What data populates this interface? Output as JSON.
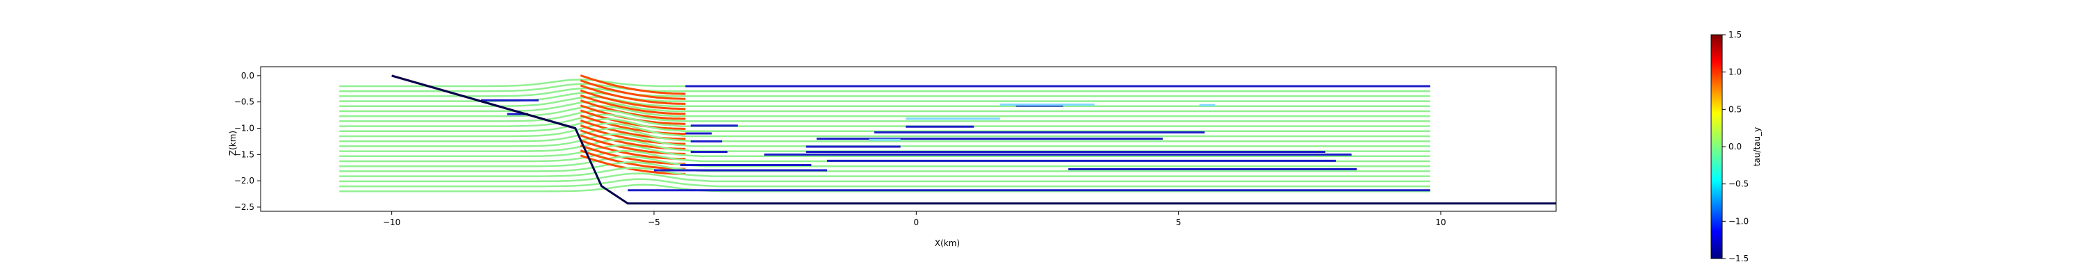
{
  "chart_data": [
    {
      "type": "line",
      "title": "",
      "xlabel": "X(km)",
      "ylabel": "Z(km)",
      "xlim": [
        -12.5,
        12.2
      ],
      "ylim": [
        -2.58,
        0.17
      ],
      "xticks": [
        -10,
        -5,
        0,
        5,
        10
      ],
      "yticks": [
        0.0,
        -0.5,
        -1.0,
        -1.5,
        -2.0,
        -2.5
      ],
      "xtick_labels": [
        "−10",
        "−5",
        "0",
        "5",
        "10"
      ],
      "ytick_labels": [
        "0.0",
        "−0.5",
        "−1.0",
        "−1.5",
        "−2.0",
        "−2.5"
      ],
      "grid": false,
      "colors": {
        "boundary": "#00004d",
        "fault": "#7a0000",
        "low": "#1c1cc8",
        "mid": "#90f090",
        "high": "#ff4a00",
        "light_blue": "#80d8ff"
      },
      "series": [
        {
          "role": "fault",
          "color": "fault",
          "x": [
            -10.0,
            -6.5
          ],
          "y": [
            0.0,
            -1.0
          ]
        },
        {
          "role": "boundary",
          "color": "boundary",
          "x": [
            -10.0,
            -6.5,
            -6.0,
            -5.5,
            12.2
          ],
          "y": [
            0.0,
            -1.0,
            -2.1,
            -2.43,
            -2.43
          ]
        }
      ],
      "streamlines": {
        "z_start": -0.2,
        "z_end": -2.2,
        "count": 22,
        "x_start": -11.0,
        "x_end": 9.8
      },
      "low_segments": [
        {
          "x": [
            -8.3,
            -7.2
          ],
          "y": [
            -0.47,
            -0.47
          ]
        },
        {
          "x": [
            -7.8,
            -7.4
          ],
          "y": [
            -0.73,
            -0.73
          ]
        },
        {
          "x": [
            -4.4,
            9.8
          ],
          "y": [
            -0.2,
            -0.2
          ]
        },
        {
          "x": [
            -4.3,
            -3.4
          ],
          "y": [
            -0.95,
            -0.95
          ]
        },
        {
          "x": [
            -4.4,
            -3.9
          ],
          "y": [
            -1.1,
            -1.1
          ]
        },
        {
          "x": [
            -4.3,
            -3.7
          ],
          "y": [
            -1.25,
            -1.25
          ]
        },
        {
          "x": [
            -4.3,
            -3.6
          ],
          "y": [
            -1.45,
            -1.45
          ]
        },
        {
          "x": [
            -4.5,
            -2.0
          ],
          "y": [
            -1.7,
            -1.7
          ]
        },
        {
          "x": [
            -2.1,
            7.8
          ],
          "y": [
            -1.45,
            -1.45
          ]
        },
        {
          "x": [
            -0.8,
            5.5
          ],
          "y": [
            -1.08,
            -1.08
          ]
        },
        {
          "x": [
            -1.9,
            4.7
          ],
          "y": [
            -1.2,
            -1.2
          ]
        },
        {
          "x": [
            -2.9,
            8.3
          ],
          "y": [
            -1.5,
            -1.5
          ]
        },
        {
          "x": [
            -1.7,
            8.0
          ],
          "y": [
            -1.62,
            -1.62
          ]
        },
        {
          "x": [
            1.9,
            2.8
          ],
          "y": [
            -0.57,
            -0.57
          ]
        },
        {
          "x": [
            -0.2,
            1.1
          ],
          "y": [
            -0.97,
            -0.97
          ]
        },
        {
          "x": [
            -2.1,
            -0.3
          ],
          "y": [
            -1.35,
            -1.35
          ]
        },
        {
          "x": [
            -5.0,
            -1.7
          ],
          "y": [
            -1.8,
            -1.8
          ]
        },
        {
          "x": [
            -5.5,
            9.8
          ],
          "y": [
            -2.18,
            -2.18
          ]
        },
        {
          "x": [
            2.9,
            8.4
          ],
          "y": [
            -1.78,
            -1.78
          ]
        }
      ],
      "light_segments": [
        {
          "x": [
            1.6,
            3.4
          ],
          "y": [
            -0.55,
            -0.55
          ]
        },
        {
          "x": [
            -0.2,
            1.6
          ],
          "y": [
            -0.82,
            -0.82
          ]
        },
        {
          "x": [
            -0.9,
            -0.3
          ],
          "y": [
            -1.22,
            -1.22
          ]
        },
        {
          "x": [
            5.4,
            5.7
          ],
          "y": [
            -0.56,
            -0.56
          ]
        }
      ],
      "colorbar": {
        "label": "tau/tau_y",
        "min": -1.5,
        "max": 1.5,
        "ticks": [
          1.5,
          1.0,
          0.5,
          0.0,
          -0.5,
          -1.0,
          -1.5
        ],
        "tick_labels": [
          "1.5",
          "1.0",
          "0.5",
          "0.0",
          "−0.5",
          "−1.0",
          "−1.5"
        ],
        "colormap": "jet"
      }
    }
  ]
}
